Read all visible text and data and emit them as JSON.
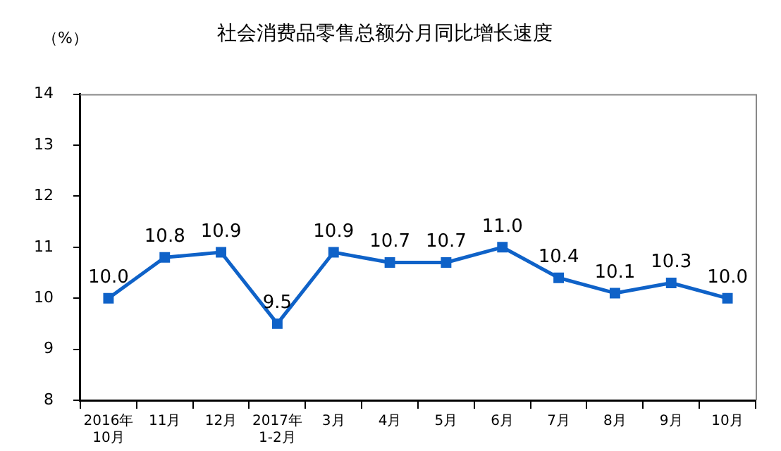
{
  "chart_data": {
    "type": "line",
    "title": "社会消费品零售总额分月同比增长速度",
    "ylabel": "（%）",
    "categories": [
      "2016年\n10月",
      "11月",
      "12月",
      "2017年\n1-2月",
      "3月",
      "4月",
      "5月",
      "6月",
      "7月",
      "8月",
      "9月",
      "10月"
    ],
    "series": [
      {
        "color": "#0f62c8",
        "values": [
          10.0,
          10.8,
          10.9,
          9.5,
          10.9,
          10.7,
          10.7,
          11.0,
          10.4,
          10.1,
          10.3,
          10.0
        ],
        "value_labels": [
          "10.0",
          "10.8",
          "10.9",
          "9.5",
          "10.9",
          "10.7",
          "10.7",
          "11.0",
          "10.4",
          "10.1",
          "10.3",
          "10.0"
        ]
      }
    ],
    "ylim": [
      8,
      14
    ],
    "yticks": [
      8,
      9,
      10,
      11,
      12,
      13,
      14
    ],
    "grid": false,
    "legend": false,
    "marker": "square",
    "line_style": "solid"
  }
}
